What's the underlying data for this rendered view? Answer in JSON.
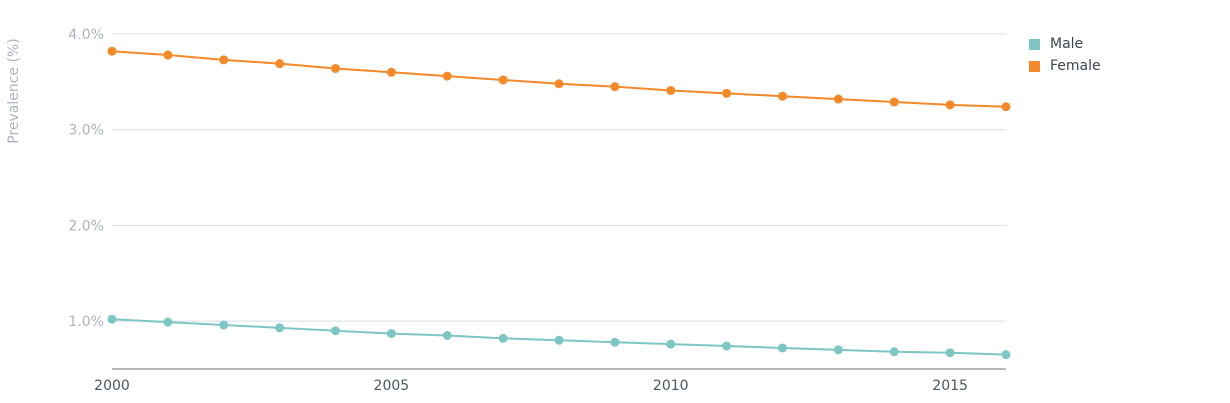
{
  "chart_data": {
    "type": "line",
    "ylabel": "Prevalence (%)",
    "xlabel": "",
    "x": [
      2000,
      2001,
      2002,
      2003,
      2004,
      2005,
      2006,
      2007,
      2008,
      2009,
      2010,
      2011,
      2012,
      2013,
      2014,
      2015,
      2016
    ],
    "xlim": [
      2000,
      2016
    ],
    "ylim": [
      0.5,
      4.0
    ],
    "xticks": [
      2000,
      2005,
      2010,
      2015
    ],
    "yticks": [
      1.0,
      2.0,
      3.0,
      4.0
    ],
    "ytick_labels": [
      "1.0%",
      "2.0%",
      "3.0%",
      "4.0%"
    ],
    "grid": true,
    "legend_position": "top-right",
    "series": [
      {
        "name": "Male",
        "color": "#7ec6c4",
        "values": [
          1.02,
          0.99,
          0.96,
          0.93,
          0.9,
          0.87,
          0.85,
          0.82,
          0.8,
          0.78,
          0.76,
          0.74,
          0.72,
          0.7,
          0.68,
          0.67,
          0.65
        ]
      },
      {
        "name": "Female",
        "color": "#f4892a",
        "values": [
          3.82,
          3.78,
          3.73,
          3.69,
          3.64,
          3.6,
          3.56,
          3.52,
          3.48,
          3.45,
          3.41,
          3.38,
          3.35,
          3.32,
          3.29,
          3.26,
          3.24
        ]
      }
    ]
  }
}
